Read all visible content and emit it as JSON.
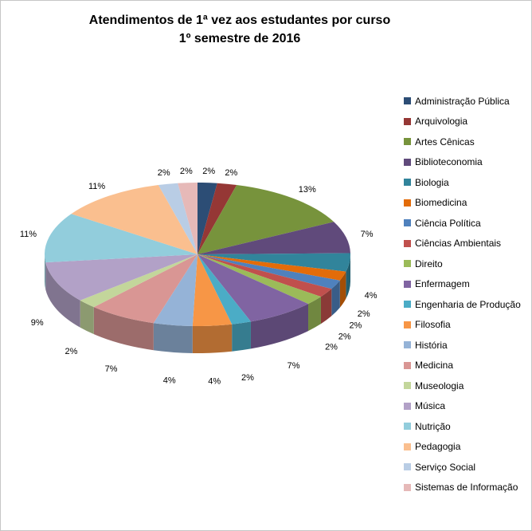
{
  "window": {
    "background": "#FFFFFF",
    "border_color": "#C6C6C6"
  },
  "chart_data": {
    "type": "pie",
    "style": "3d-pie",
    "title": "Atendimentos de 1ª vez aos estudantes por curso",
    "subtitle": "1º semestre de 2016",
    "legend_position": "right",
    "data_labels": "percentage-outside",
    "categories": [
      "Administração Pública",
      "Arquivologia",
      "Artes Cênicas",
      "Biblioteconomia",
      "Biologia",
      "Biomedicina",
      "Ciência Política",
      "Ciências Ambientais",
      "Direito",
      "Enfermagem",
      "Engenharia de Produção",
      "Filosofia",
      "História",
      "Medicina",
      "Museologia",
      "Música",
      "Nutrição",
      "Pedagogia",
      "Serviço Social",
      "Sistemas de Informação"
    ],
    "values": [
      2,
      2,
      13,
      7,
      4,
      2,
      2,
      2,
      2,
      7,
      2,
      4,
      4,
      7,
      2,
      9,
      11,
      11,
      2,
      2
    ],
    "labels": [
      "2%",
      "2%",
      "13%",
      "7%",
      "4%",
      "2%",
      "2%",
      "2%",
      "2%",
      "7%",
      "2%",
      "4%",
      "4%",
      "7%",
      "2%",
      "9%",
      "11%",
      "11%",
      "2%",
      "2%"
    ],
    "colors": [
      "#2C4D75",
      "#953735",
      "#77933C",
      "#604A7B",
      "#31849B",
      "#E36C09",
      "#4F81BD",
      "#C0504D",
      "#9BBB59",
      "#8064A2",
      "#4BACC6",
      "#F79646",
      "#95B3D7",
      "#D99694",
      "#C3D69B",
      "#B2A1C7",
      "#92CDDC",
      "#FABF8F",
      "#B9CDE5",
      "#E6B9B8"
    ]
  }
}
